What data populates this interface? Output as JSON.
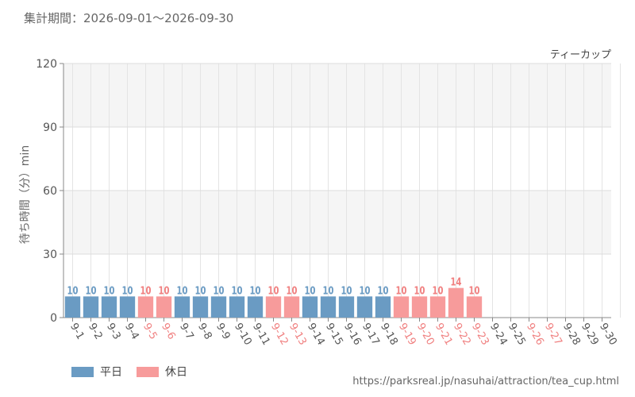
{
  "period_label": "集計期間：2026-09-01〜2026-09-30",
  "source_url": "https://parksreal.jp/nasuhai/attraction/tea_cup.html",
  "legend": {
    "weekday": "平日",
    "holiday": "休日"
  },
  "colors": {
    "weekday": "#6a9bc3",
    "holiday": "#f79b9b",
    "holiday_text": "#f08080",
    "axis_text": "#555555"
  },
  "chart_data": {
    "type": "bar",
    "title": "ティーカップ",
    "ylabel": "待ち時間（分）min",
    "ylim": [
      0,
      120
    ],
    "yticks": [
      0,
      30,
      60,
      90,
      120
    ],
    "grid": true,
    "legend_position": "bottom-left",
    "categories": [
      "9-1",
      "9-2",
      "9-3",
      "9-4",
      "9-5",
      "9-6",
      "9-7",
      "9-8",
      "9-9",
      "9-10",
      "9-11",
      "9-12",
      "9-13",
      "9-14",
      "9-15",
      "9-16",
      "9-17",
      "9-18",
      "9-19",
      "9-20",
      "9-21",
      "9-22",
      "9-23",
      "9-24",
      "9-25",
      "9-26",
      "9-27",
      "9-28",
      "9-29",
      "9-30"
    ],
    "values": [
      10,
      10,
      10,
      10,
      10,
      10,
      10,
      10,
      10,
      10,
      10,
      10,
      10,
      10,
      10,
      10,
      10,
      10,
      10,
      10,
      10,
      14,
      10,
      null,
      null,
      null,
      null,
      null,
      null,
      null
    ],
    "holiday": [
      false,
      false,
      false,
      false,
      true,
      true,
      false,
      false,
      false,
      false,
      false,
      true,
      true,
      false,
      false,
      false,
      false,
      false,
      true,
      true,
      true,
      true,
      true,
      false,
      false,
      true,
      true,
      false,
      false,
      false
    ]
  }
}
